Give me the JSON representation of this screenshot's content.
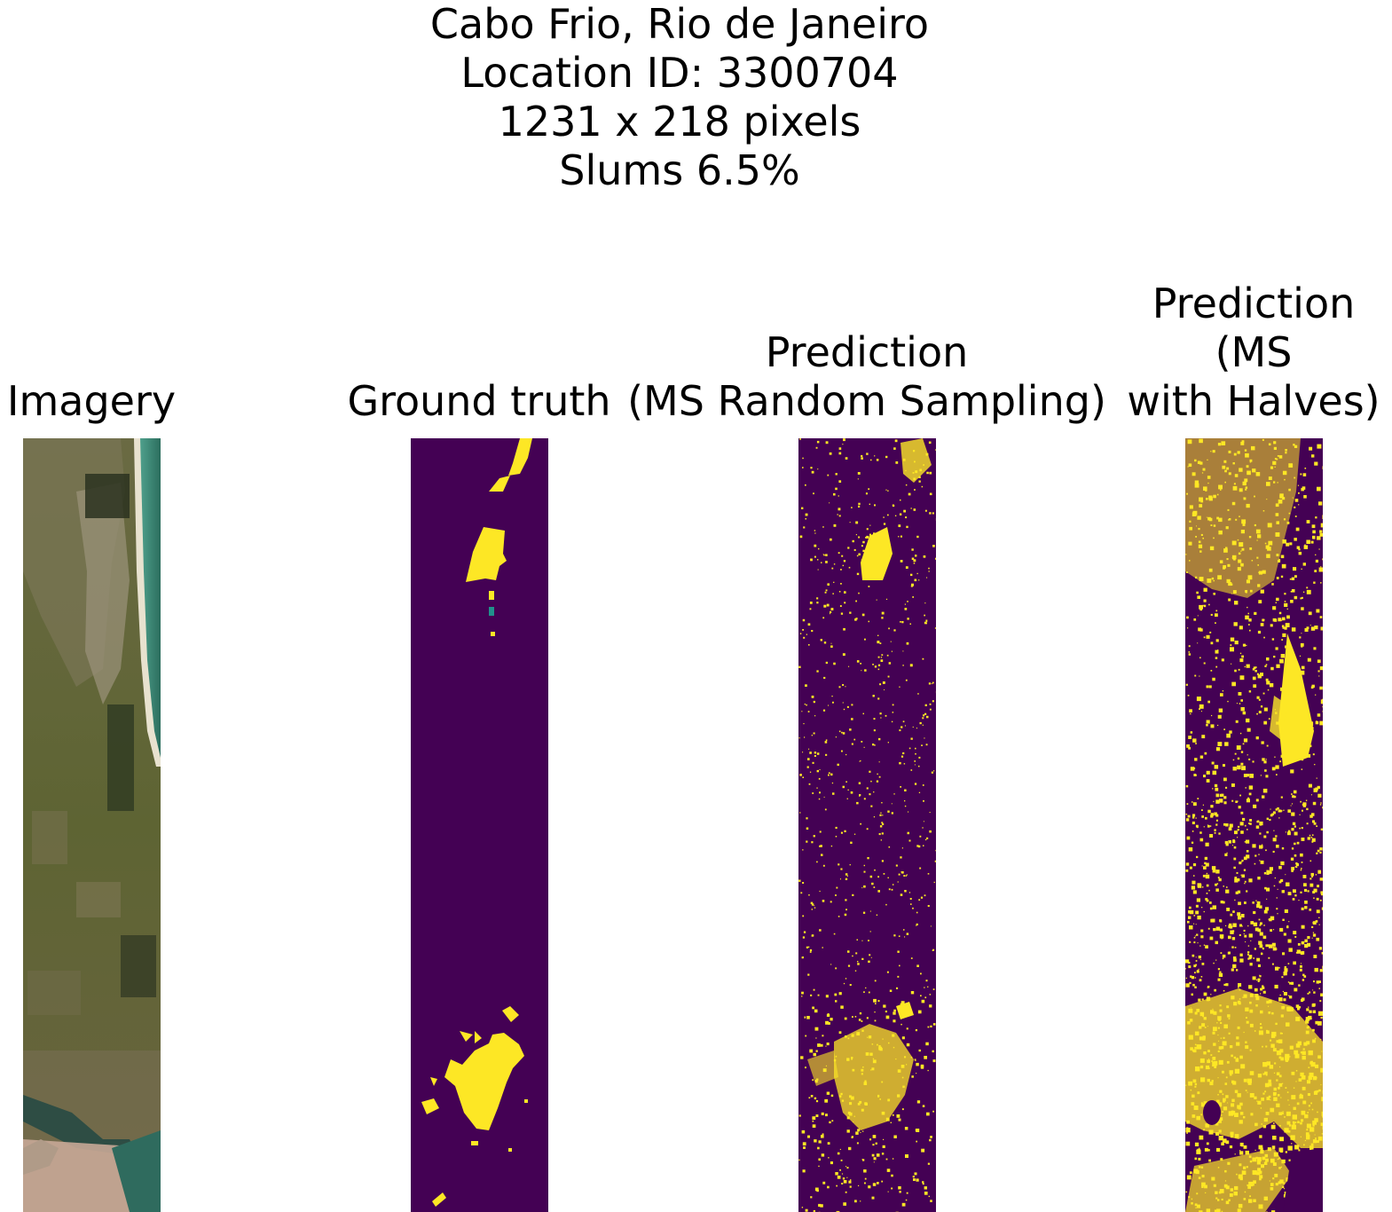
{
  "figure": {
    "suptitle_lines": [
      "Cabo Frio, Rio de Janeiro",
      "Location ID: 3300704",
      "1231 x 218 pixels",
      "Slums 6.5%"
    ],
    "panels": [
      {
        "title_lines": [
          "Imagery"
        ]
      },
      {
        "title_lines": [
          "Ground truth"
        ]
      },
      {
        "title_lines": [
          "Prediction",
          "(MS Random Sampling)"
        ]
      },
      {
        "title_lines": [
          "Prediction",
          "(MS",
          "with Halves)"
        ]
      }
    ]
  },
  "colors": {
    "mask_background": "#440154",
    "mask_foreground": "#fde725",
    "mask_edge": "#21918c",
    "imagery_land": "#5d6436",
    "imagery_water": "#2e7a6a",
    "imagery_urban": "#b9a992"
  }
}
